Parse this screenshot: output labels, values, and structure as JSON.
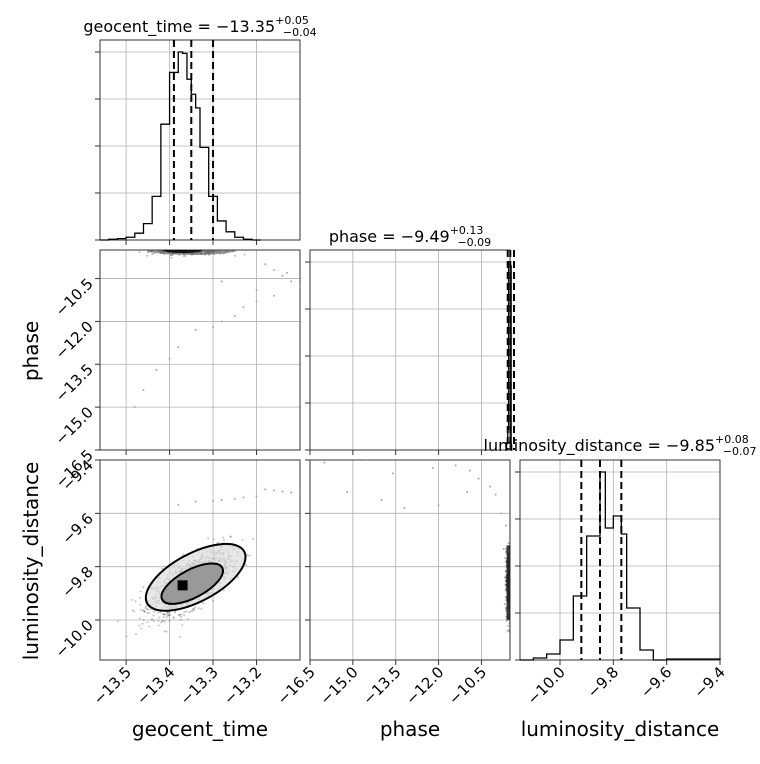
{
  "chart_data": {
    "type": "corner",
    "parameters": [
      "geocent_time",
      "phase",
      "luminosity_distance"
    ],
    "titles": {
      "geocent_time": {
        "name": "geocent_time",
        "median": "−13.35",
        "plus": "+0.05",
        "minus": "−0.04"
      },
      "phase": {
        "name": "phase",
        "median": "−9.49",
        "plus": "+0.13",
        "minus": "−0.09"
      },
      "luminosity_distance": {
        "name": "luminosity_distance",
        "median": "−9.85",
        "plus": "+0.08",
        "minus": "−0.07"
      }
    },
    "ranges": {
      "geocent_time": [
        -13.56,
        -13.1
      ],
      "phase": [
        -16.5,
        -9.5
      ],
      "luminosity_distance": [
        -10.15,
        -9.4
      ]
    },
    "ticks": {
      "geocent_time": [
        -13.5,
        -13.4,
        -13.3,
        -13.2
      ],
      "geocent_time_labels": [
        "−13.5",
        "−13.4",
        "−13.3",
        "−13.2"
      ],
      "phase": [
        -16.5,
        -15.0,
        -13.5,
        -12.0,
        -10.5
      ],
      "phase_labels": [
        "−16.5",
        "−15.0",
        "−13.5",
        "−12.0",
        "−10.5"
      ],
      "luminosity_distance": [
        -10.0,
        -9.8,
        -9.6,
        -9.4
      ],
      "luminosity_distance_labels": [
        "−10.0",
        "−9.8",
        "−9.6",
        "−9.4"
      ]
    },
    "quantiles": {
      "geocent_time": [
        -13.39,
        -13.35,
        -13.3
      ],
      "phase": [
        -9.58,
        -9.49,
        -9.36
      ],
      "luminosity_distance": [
        -9.92,
        -9.85,
        -9.77
      ]
    },
    "hist_geocent_time": {
      "edges": [
        -13.56,
        -13.54,
        -13.52,
        -13.5,
        -13.48,
        -13.46,
        -13.44,
        -13.42,
        -13.4,
        -13.38,
        -13.37,
        -13.36,
        -13.35,
        -13.34,
        -13.33,
        -13.31,
        -13.29,
        -13.27,
        -13.25,
        -13.23,
        -13.21,
        -13.19
      ],
      "counts": [
        0,
        0.5,
        1,
        2,
        5,
        12,
        32,
        85,
        123,
        138,
        137,
        118,
        107,
        97,
        68,
        32,
        14,
        6,
        2,
        0.5,
        0
      ]
    },
    "hist_phase": {
      "edges": [
        -9.62,
        -9.58,
        -9.55,
        -9.52,
        -9.49,
        -9.46
      ],
      "counts": [
        4,
        11,
        100,
        100,
        98
      ]
    },
    "hist_luminosity_distance": {
      "edges": [
        -10.15,
        -10.1,
        -10.05,
        -10.0,
        -9.95,
        -9.9,
        -9.85,
        -9.83,
        -9.8,
        -9.77,
        -9.75,
        -9.7,
        -9.65,
        -9.6,
        -9.4
      ],
      "counts": [
        0,
        1,
        3,
        10,
        32,
        62,
        94,
        66,
        72,
        63,
        26,
        5,
        0,
        0.5
      ]
    },
    "outliers_geocent_phase": [
      [
        -13.18,
        -10.0
      ],
      [
        -13.16,
        -10.2
      ],
      [
        -13.14,
        -10.4
      ],
      [
        -13.12,
        -10.6
      ],
      [
        -13.1,
        -10.8
      ],
      [
        -13.2,
        -11.3
      ],
      [
        -13.23,
        -11.5
      ],
      [
        -13.25,
        -11.8
      ],
      [
        -13.28,
        -12.0
      ],
      [
        -13.3,
        -12.2
      ],
      [
        -13.34,
        -12.3
      ],
      [
        -13.38,
        -12.9
      ],
      [
        -13.4,
        -13.3
      ],
      [
        -13.43,
        -13.7
      ],
      [
        -13.46,
        -14.4
      ],
      [
        -13.48,
        -15.0
      ],
      [
        -13.28,
        -10.6
      ],
      [
        -13.2,
        -10.9
      ],
      [
        -13.16,
        -11.1
      ],
      [
        -13.13,
        -10.3
      ]
    ],
    "outliers_phase_lumdist": [
      [
        -16.0,
        -9.41
      ],
      [
        -14.5,
        -9.4
      ],
      [
        -13.6,
        -9.45
      ],
      [
        -12.2,
        -9.43
      ],
      [
        -11.4,
        -9.42
      ],
      [
        -10.9,
        -9.44
      ],
      [
        -10.6,
        -9.47
      ],
      [
        -15.2,
        -9.52
      ],
      [
        -14.0,
        -9.55
      ],
      [
        -13.2,
        -9.58
      ],
      [
        -12.0,
        -9.57
      ],
      [
        -11.0,
        -9.52
      ],
      [
        -10.2,
        -9.5
      ],
      [
        -10.0,
        -9.53
      ],
      [
        -9.8,
        -9.6
      ]
    ]
  }
}
